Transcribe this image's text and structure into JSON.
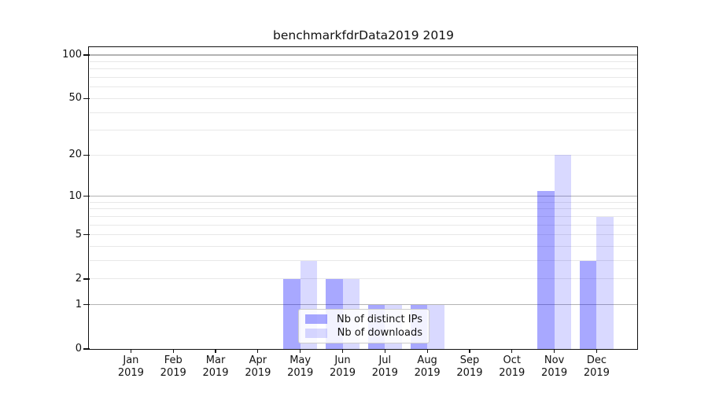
{
  "chart_data": {
    "type": "bar",
    "title": "benchmarkfdrData2019 2019",
    "x_year": "2019",
    "categories": [
      "Jan",
      "Feb",
      "Mar",
      "Apr",
      "May",
      "Jun",
      "Jul",
      "Aug",
      "Sep",
      "Oct",
      "Nov",
      "Dec"
    ],
    "series": [
      {
        "name": "Nb of distinct IPs",
        "color": "#0000ff",
        "alpha": 0.34,
        "values": [
          0,
          0,
          0,
          0,
          2,
          2,
          1,
          1,
          0,
          0,
          11,
          3
        ]
      },
      {
        "name": "Nb of downloads",
        "color": "#0000ff",
        "alpha": 0.15,
        "values": [
          0,
          0,
          0,
          0,
          3,
          2,
          1,
          1,
          0,
          0,
          20,
          7
        ]
      }
    ],
    "y_axis": {
      "scale": "log1p",
      "tick_values": [
        0,
        1,
        2,
        5,
        10,
        20,
        50,
        100
      ],
      "major_gridlines": [
        1,
        10,
        100
      ],
      "minor_gridlines": [
        2,
        3,
        4,
        5,
        6,
        7,
        8,
        9,
        20,
        30,
        40,
        50,
        60,
        70,
        80,
        90
      ],
      "top_value": 112,
      "ylim": [
        0,
        100
      ]
    },
    "legend_position": "lower-center",
    "colors": {
      "grid_major": "#b3b3b3",
      "grid_minor": "#e8e8e8",
      "spine": "#111111",
      "text": "#111111",
      "legend_border": "#cccccc"
    }
  }
}
